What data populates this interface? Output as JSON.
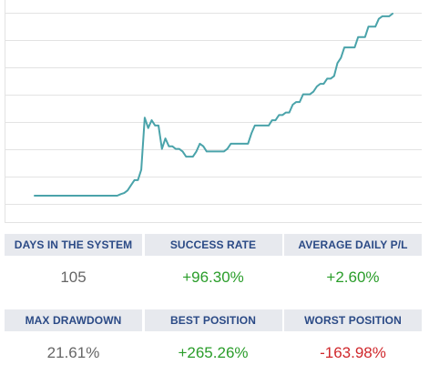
{
  "chart_data": {
    "type": "line",
    "title": "",
    "xlabel": "",
    "ylabel": "",
    "grid": true,
    "line_color": "#4aa3aa",
    "x": [
      0,
      1,
      2,
      3,
      4,
      5,
      6,
      7,
      8,
      9,
      10,
      11,
      12,
      13,
      14,
      15,
      16,
      17,
      18,
      19,
      20,
      21,
      22,
      23,
      24,
      25,
      26,
      27,
      28,
      29,
      30,
      31,
      32,
      33,
      34,
      35,
      36,
      37,
      38,
      39,
      40,
      41,
      42,
      43,
      44,
      45,
      46,
      47,
      48,
      49,
      50,
      51,
      52,
      53,
      54,
      55,
      56,
      57,
      58,
      59,
      60,
      61,
      62,
      63,
      64,
      65,
      66,
      67,
      68,
      69,
      70,
      71,
      72,
      73,
      74,
      75,
      76,
      77,
      78,
      79,
      80,
      81,
      82,
      83,
      84,
      85,
      86,
      87,
      88,
      89,
      90,
      91,
      92,
      93,
      94,
      95,
      96,
      97,
      98,
      99,
      100,
      101,
      102,
      103,
      104
    ],
    "values": [
      0,
      0,
      0,
      0,
      0,
      0,
      0,
      0,
      0,
      0,
      0,
      0,
      0,
      0,
      0,
      0,
      0,
      0,
      0,
      0,
      0,
      0,
      0,
      0,
      0,
      0.6,
      1,
      2,
      4,
      6,
      6,
      10,
      30,
      26,
      29,
      27,
      27,
      18,
      22,
      19,
      19,
      18,
      18,
      17,
      15,
      15,
      15,
      17,
      20,
      19,
      17,
      17,
      17,
      17,
      17,
      17,
      18,
      20,
      20,
      20,
      20,
      20,
      20,
      24,
      27,
      27,
      27,
      27,
      27,
      29,
      29,
      31,
      31,
      32,
      32,
      35,
      36,
      36,
      39,
      39,
      39,
      40,
      42,
      43,
      43,
      45,
      45,
      46,
      51,
      53,
      57,
      57,
      57,
      57,
      61,
      61,
      61,
      65,
      65,
      65,
      68,
      69,
      69,
      69,
      70
    ],
    "ylim": [
      -8,
      72
    ]
  },
  "stats": {
    "colors": {
      "header_bg": "#e7e9ee",
      "header_text": "#2b4a86",
      "neutral": "#666666",
      "positive": "#2a9d2a",
      "negative": "#d0282c"
    },
    "days_label": "DAYS IN THE SYSTEM",
    "days_value": "105",
    "success_label": "SUCCESS RATE",
    "success_value": "+96.30%",
    "avg_label": "AVERAGE DAILY P/L",
    "avg_value": "+2.60%",
    "drawdown_label": "MAX DRAWDOWN",
    "drawdown_value": "21.61%",
    "best_label": "BEST POSITION",
    "best_value": "+265.26%",
    "worst_label": "WORST POSITION",
    "worst_value": "-163.98%"
  }
}
